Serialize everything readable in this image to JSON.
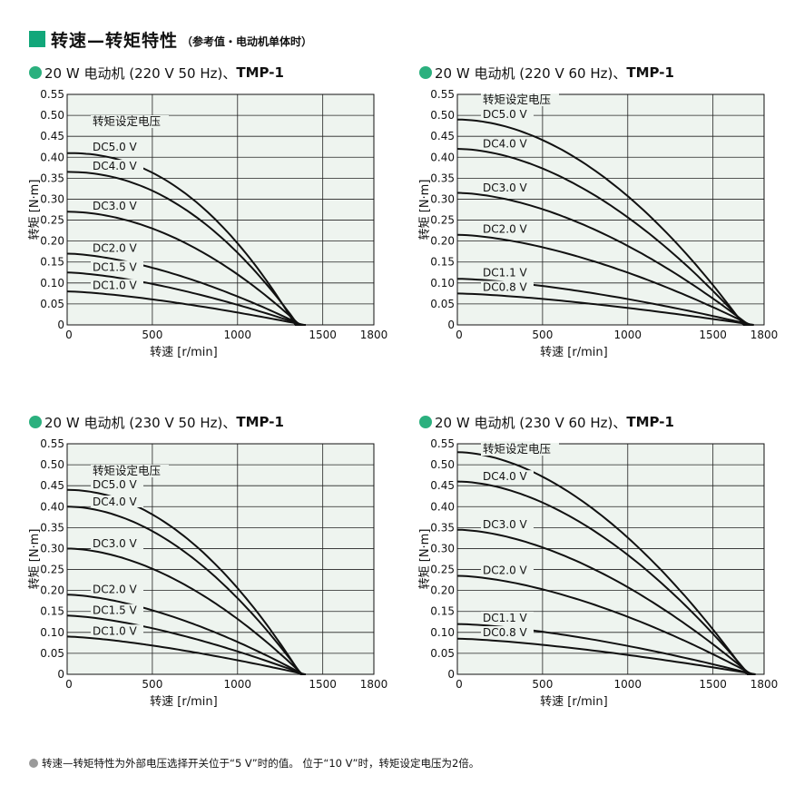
{
  "header": {
    "title": "转速—转矩特性",
    "subtitle": "（参考值・电动机单体时）"
  },
  "footnote": "转速—转矩特性为外部电压选择开关位于“5 V”时的值。 位于“10 V”时，转矩设定电压为2倍。",
  "colors": {
    "accent": "#12a77a",
    "plot_bg": "#eef4ef",
    "curve": "#111111"
  },
  "panels": [
    {
      "title_main": "20 W 电动机 (220 V 50 Hz)、",
      "title_model": "TMP-1"
    },
    {
      "title_main": "20 W 电动机 (220 V 60 Hz)、",
      "title_model": "TMP-1"
    },
    {
      "title_main": "20 W 电动机 (230 V 50 Hz)、",
      "title_model": "TMP-1"
    },
    {
      "title_main": "20 W 电动机 (230 V 60 Hz)、",
      "title_model": "TMP-1"
    }
  ],
  "chart_data": [
    {
      "type": "line",
      "xlabel": "转速 [r/min]",
      "ylabel": "转矩 [N·m]",
      "xlim": [
        0,
        1800
      ],
      "ylim": [
        0,
        0.55
      ],
      "xticks": [
        0,
        500,
        1000,
        1500,
        1800
      ],
      "yticks": [
        0,
        0.05,
        0.1,
        0.15,
        0.2,
        0.25,
        0.3,
        0.35,
        0.4,
        0.45,
        0.5,
        0.55
      ],
      "grid": true,
      "annotation": "转矩设定电压",
      "x_end": 1400,
      "series": [
        {
          "name": "DC5.0 V",
          "y0": 0.41,
          "xk": 1340,
          "bend": 2.2
        },
        {
          "name": "DC4.0 V",
          "y0": 0.365,
          "xk": 1355,
          "bend": 2.1
        },
        {
          "name": "DC3.0 V",
          "y0": 0.27,
          "xk": 1365,
          "bend": 1.9
        },
        {
          "name": "DC2.0 V",
          "y0": 0.17,
          "xk": 1375,
          "bend": 1.6
        },
        {
          "name": "DC1.5 V",
          "y0": 0.125,
          "xk": 1380,
          "bend": 1.5
        },
        {
          "name": "DC1.0 V",
          "y0": 0.08,
          "xk": 1390,
          "bend": 1.4
        }
      ]
    },
    {
      "type": "line",
      "xlabel": "转速 [r/min]",
      "ylabel": "转矩 [N·m]",
      "xlim": [
        0,
        1800
      ],
      "ylim": [
        0,
        0.55
      ],
      "xticks": [
        0,
        500,
        1000,
        1500,
        1800
      ],
      "yticks": [
        0,
        0.05,
        0.1,
        0.15,
        0.2,
        0.25,
        0.3,
        0.35,
        0.4,
        0.45,
        0.5,
        0.55
      ],
      "grid": true,
      "annotation": "转矩设定电压",
      "x_end": 1700,
      "series": [
        {
          "name": "DC5.0 V",
          "y0": 0.49,
          "xk": 1680,
          "bend": 1.9
        },
        {
          "name": "DC4.0 V",
          "y0": 0.42,
          "xk": 1690,
          "bend": 1.8
        },
        {
          "name": "DC3.0 V",
          "y0": 0.315,
          "xk": 1710,
          "bend": 1.7
        },
        {
          "name": "DC2.0 V",
          "y0": 0.215,
          "xk": 1720,
          "bend": 1.6
        },
        {
          "name": "DC1.1 V",
          "y0": 0.11,
          "xk": 1730,
          "bend": 1.5
        },
        {
          "name": "DC0.8 V",
          "y0": 0.075,
          "xk": 1740,
          "bend": 1.4
        }
      ]
    },
    {
      "type": "line",
      "xlabel": "转速 [r/min]",
      "ylabel": "转矩 [N·m]",
      "xlim": [
        0,
        1800
      ],
      "ylim": [
        0,
        0.55
      ],
      "xticks": [
        0,
        500,
        1000,
        1500,
        1800
      ],
      "yticks": [
        0,
        0.05,
        0.1,
        0.15,
        0.2,
        0.25,
        0.3,
        0.35,
        0.4,
        0.45,
        0.5,
        0.55
      ],
      "grid": true,
      "annotation": "转矩设定电压",
      "x_end": 1400,
      "series": [
        {
          "name": "DC5.0 V",
          "y0": 0.44,
          "xk": 1370,
          "bend": 2.0
        },
        {
          "name": "DC4.0 V",
          "y0": 0.4,
          "xk": 1375,
          "bend": 1.9
        },
        {
          "name": "DC3.0 V",
          "y0": 0.3,
          "xk": 1380,
          "bend": 1.8
        },
        {
          "name": "DC2.0 V",
          "y0": 0.19,
          "xk": 1385,
          "bend": 1.6
        },
        {
          "name": "DC1.5 V",
          "y0": 0.14,
          "xk": 1390,
          "bend": 1.5
        },
        {
          "name": "DC1.0 V",
          "y0": 0.09,
          "xk": 1395,
          "bend": 1.4
        }
      ]
    },
    {
      "type": "line",
      "xlabel": "转速 [r/min]",
      "ylabel": "转矩 [N·m]",
      "xlim": [
        0,
        1800
      ],
      "ylim": [
        0,
        0.55
      ],
      "xticks": [
        0,
        500,
        1000,
        1500,
        1800
      ],
      "yticks": [
        0,
        0.05,
        0.1,
        0.15,
        0.2,
        0.25,
        0.3,
        0.35,
        0.4,
        0.45,
        0.5,
        0.55
      ],
      "grid": true,
      "annotation": "转矩设定电压",
      "x_end": 1700,
      "series": [
        {
          "name": "DC5.0 V",
          "y0": 0.53,
          "xk": 1700,
          "bend": 1.8
        },
        {
          "name": "DC4.0 V",
          "y0": 0.46,
          "xk": 1710,
          "bend": 1.8
        },
        {
          "name": "DC3.0 V",
          "y0": 0.345,
          "xk": 1720,
          "bend": 1.7
        },
        {
          "name": "DC2.0 V",
          "y0": 0.235,
          "xk": 1730,
          "bend": 1.6
        },
        {
          "name": "DC1.1 V",
          "y0": 0.12,
          "xk": 1740,
          "bend": 1.5
        },
        {
          "name": "DC0.8 V",
          "y0": 0.085,
          "xk": 1750,
          "bend": 1.4
        }
      ]
    }
  ]
}
